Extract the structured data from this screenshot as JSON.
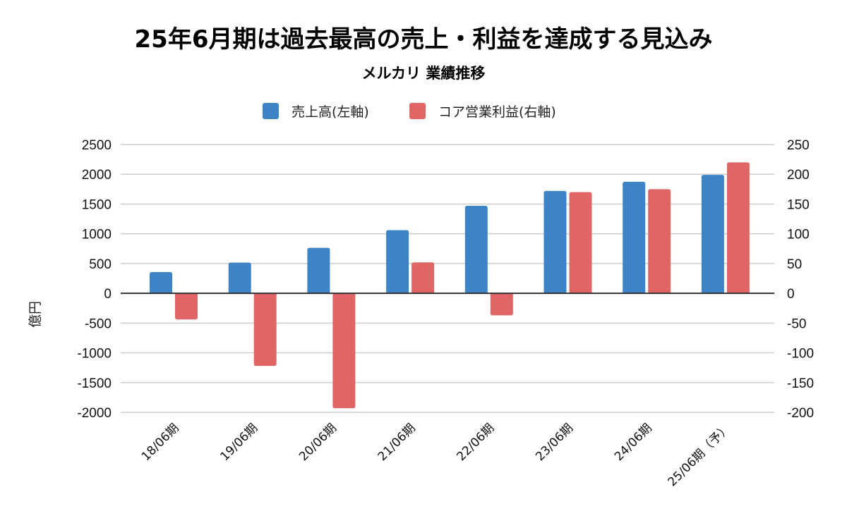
{
  "chart_data": {
    "type": "bar",
    "title": "25年6月期は過去最高の売上・利益を達成する見込み",
    "subtitle": "メルカリ 業績推移",
    "categories": [
      "18/06期",
      "19/06期",
      "20/06期",
      "21/06期",
      "22/06期",
      "23/06期",
      "24/06期",
      "25/06期（予）"
    ],
    "series": [
      {
        "name": "売上高(左軸)",
        "axis": "left",
        "color": "#3d84c6",
        "values": [
          357,
          517,
          763,
          1061,
          1470,
          1720,
          1874,
          1990
        ]
      },
      {
        "name": "コア営業利益(右軸)",
        "axis": "right",
        "color": "#e06666",
        "values": [
          -44,
          -122,
          -193,
          52,
          -37,
          170,
          175,
          220
        ]
      }
    ],
    "ylabel": "億円",
    "xlabel": "",
    "ylim_left": [
      -2000,
      2500
    ],
    "ylim_right": [
      -200,
      250
    ],
    "yticks_left": [
      "2500",
      "2000",
      "1500",
      "1000",
      "500",
      "0",
      "-500",
      "-1000",
      "-1500",
      "-2000"
    ],
    "yticks_right": [
      "250",
      "200",
      "150",
      "100",
      "50",
      "0",
      "-50",
      "-100",
      "-150",
      "-200"
    ],
    "grid": true,
    "legend_position": "top-center"
  }
}
